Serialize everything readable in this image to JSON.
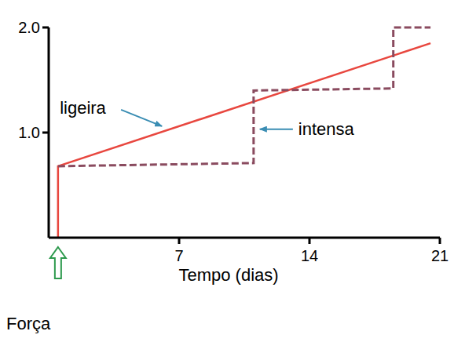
{
  "chart_data": {
    "type": "line",
    "xlabel": "Tempo (dias)",
    "xlim": [
      0,
      21
    ],
    "xticks": [
      7,
      14,
      21
    ],
    "ylim": [
      0,
      2
    ],
    "yticks": [
      {
        "value": 1,
        "label": "1.0"
      },
      {
        "value": 2,
        "label": "2.0"
      }
    ],
    "series": [
      {
        "name": "ligeira",
        "color": "#e8473f",
        "line_style": "solid",
        "x": [
          0.5,
          0.5,
          20.5
        ],
        "values": [
          0,
          0.68,
          1.85
        ]
      },
      {
        "name": "intensa",
        "color": "#8a4b5f",
        "line_style": "dashed",
        "x": [
          0.5,
          11,
          11,
          18.5,
          18.5,
          20.5
        ],
        "values": [
          0.68,
          0.71,
          1.4,
          1.42,
          2.0,
          2.0
        ]
      }
    ],
    "annotations": [
      {
        "text": "Força",
        "x": 0.5
      }
    ]
  }
}
